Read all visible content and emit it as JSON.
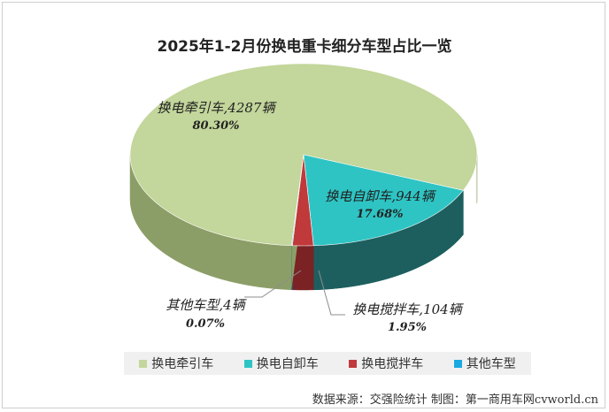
{
  "chart_data": {
    "type": "pie",
    "title": "2025年1-2月份换电重卡细分车型占比一览",
    "categories": [
      "换电牵引车",
      "换电自卸车",
      "换电搅拌车",
      "其他车型"
    ],
    "values": [
      4287,
      944,
      104,
      4
    ],
    "percent_labels": [
      "80.30%",
      "17.68%",
      "1.95%",
      "0.07%"
    ],
    "data_labels": [
      "换电牵引车,4287辆",
      "换电自卸车,944辆",
      "换电搅拌车,104辆",
      "其他车型,4辆"
    ],
    "colors": [
      "#c3d69b",
      "#2ec4c4",
      "#c0393b",
      "#1aa9e0"
    ],
    "side_colors": [
      "#8c9e67",
      "#1d5f5f",
      "#7a2224",
      "#0f6d92"
    ],
    "legend_position": "bottom",
    "style": "3d-pie"
  },
  "footer": {
    "source": "数据来源：交强险统计  制图：第一商用车网cvworld.cn"
  }
}
